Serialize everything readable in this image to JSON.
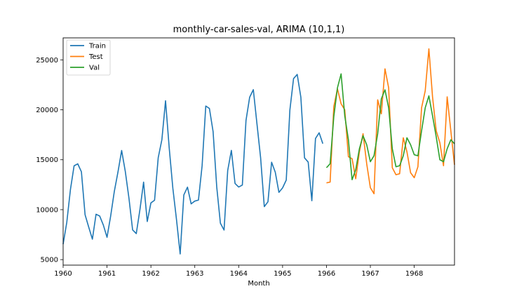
{
  "chart_data": {
    "type": "line",
    "title": "monthly-car-sales-val, ARIMA (10,1,1)",
    "xlabel": "Month",
    "ylabel": "",
    "x_unit": "year",
    "xlim": [
      1960.0,
      1968.917
    ],
    "ylim": [
      4450,
      27200
    ],
    "x_ticks": [
      1960,
      1961,
      1962,
      1963,
      1964,
      1965,
      1966,
      1967,
      1968
    ],
    "x_tick_labels": [
      "1960",
      "1961",
      "1962",
      "1963",
      "1964",
      "1965",
      "1966",
      "1967",
      "1968"
    ],
    "y_ticks": [
      5000,
      10000,
      15000,
      20000,
      25000
    ],
    "y_tick_labels": [
      "5000",
      "10000",
      "15000",
      "20000",
      "25000"
    ],
    "grid": false,
    "legend_position": "top-left",
    "series": [
      {
        "name": "Train",
        "color": "#1f77b4",
        "x_start": 1960.0,
        "x_step": 0.0833333,
        "values": [
          6550,
          8728,
          12026,
          14395,
          14587,
          13791,
          9498,
          8251,
          7049,
          9545,
          9364,
          8456,
          7237,
          9374,
          11837,
          13784,
          15926,
          13821,
          11143,
          7975,
          7610,
          10015,
          12759,
          8816,
          10677,
          10947,
          15200,
          17010,
          20900,
          16205,
          12143,
          8997,
          5568,
          11474,
          12256,
          10583,
          10862,
          10965,
          14405,
          20379,
          20128,
          17816,
          12268,
          8642,
          7962,
          13932,
          15936,
          12628,
          12267,
          12470,
          18944,
          21259,
          22015,
          18581,
          15175,
          10306,
          10792,
          14752,
          13754,
          11738,
          12181,
          12965,
          19990,
          23125,
          23541,
          21247,
          15189,
          14767,
          10895,
          17130,
          17697,
          16611
        ]
      },
      {
        "name": "Test",
        "color": "#ff7f0e",
        "x_start": 1966.0,
        "x_step": 0.0833333,
        "values": [
          12685,
          12760,
          20300,
          22100,
          20600,
          20000,
          15300,
          15100,
          13100,
          15800,
          17600,
          14600,
          12200,
          11600,
          21000,
          19600,
          24100,
          22200,
          14200,
          13500,
          13600,
          17200,
          15800,
          13700,
          13200,
          14300,
          20200,
          21900,
          26100,
          21300,
          17900,
          16700,
          14400,
          21300,
          17900,
          14500
        ]
      },
      {
        "name": "Val",
        "color": "#2ca02c",
        "x_start": 1966.0,
        "x_step": 0.0833333,
        "values": [
          14200,
          14600,
          19300,
          22200,
          23600,
          19400,
          17000,
          13000,
          14000,
          16100,
          17400,
          16500,
          14800,
          15400,
          17600,
          21100,
          22000,
          20200,
          16100,
          14300,
          14400,
          15400,
          17200,
          16500,
          15500,
          15400,
          17900,
          20200,
          21400,
          19400,
          17300,
          15000,
          14800,
          16100,
          17000,
          16600
        ]
      }
    ]
  }
}
